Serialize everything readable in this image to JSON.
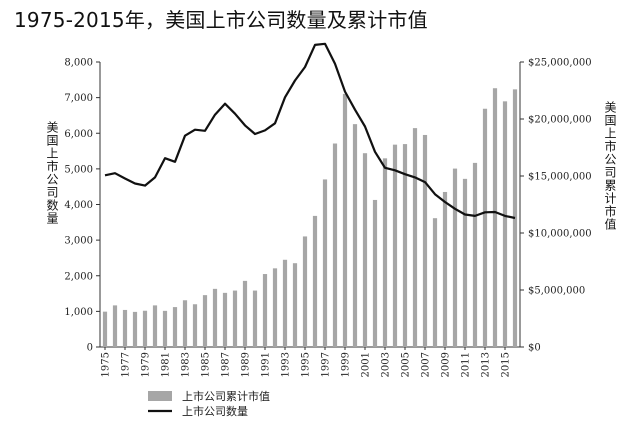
{
  "colors": {
    "bars": "#a6a6a6",
    "line": "#111111",
    "axis": "#333333"
  },
  "chart_data": {
    "type": "bar",
    "title": "1975-2015年，美国上市公司数量及累计市值",
    "ylabel": "美国上市公司数量",
    "y2label": "美国上市公司累计市值",
    "ylim": [
      0,
      8000
    ],
    "y2lim": [
      0,
      25000000
    ],
    "yticks": [
      "0",
      "1,000",
      "2,000",
      "3,000",
      "4,000",
      "5,000",
      "6,000",
      "7,000",
      "8,000"
    ],
    "y2ticks": [
      "$0",
      "$5,000,000",
      "$10,000,000",
      "$15,000,000",
      "$20,000,000",
      "$25,000,000"
    ],
    "xticks": [
      "1975",
      "1977",
      "1979",
      "1981",
      "1983",
      "1985",
      "1987",
      "1989",
      "1991",
      "1993",
      "1995",
      "1997",
      "1999",
      "2001",
      "2003",
      "2005",
      "2007",
      "2009",
      "2011",
      "2013",
      "2015"
    ],
    "categories": [
      "1975",
      "1976",
      "1977",
      "1978",
      "1979",
      "1980",
      "1981",
      "1982",
      "1983",
      "1984",
      "1985",
      "1986",
      "1987",
      "1988",
      "1989",
      "1990",
      "1991",
      "1992",
      "1993",
      "1994",
      "1995",
      "1996",
      "1997",
      "1998",
      "1999",
      "2000",
      "2001",
      "2002",
      "2003",
      "2004",
      "2005",
      "2006",
      "2007",
      "2008",
      "2009",
      "2010",
      "2011",
      "2012",
      "2013",
      "2014",
      "2015",
      "2016"
    ],
    "series": [
      {
        "name": "上市公司累计市值",
        "axis": "right",
        "kind": "bar",
        "values": [
          3100000,
          3650000,
          3250000,
          3080000,
          3180000,
          3650000,
          3170000,
          3500000,
          4100000,
          3750000,
          4550000,
          5100000,
          4750000,
          4950000,
          5800000,
          4950000,
          6400000,
          6900000,
          7650000,
          7350000,
          9700000,
          11500000,
          14700000,
          17850000,
          22200000,
          19550000,
          17000000,
          12900000,
          16550000,
          17750000,
          17800000,
          19200000,
          18600000,
          11300000,
          13600000,
          15650000,
          14750000,
          16150000,
          20900000,
          22700000,
          21550000,
          22600000
        ]
      },
      {
        "name": "上市公司数量",
        "axis": "left",
        "kind": "line",
        "values": [
          4820,
          4880,
          4730,
          4590,
          4530,
          4760,
          5300,
          5200,
          5930,
          6100,
          6070,
          6520,
          6830,
          6550,
          6220,
          5980,
          6080,
          6280,
          7010,
          7480,
          7860,
          8480,
          8510,
          7950,
          7170,
          6660,
          6190,
          5480,
          5030,
          4960,
          4850,
          4760,
          4630,
          4290,
          4070,
          3880,
          3720,
          3680,
          3780,
          3790,
          3680,
          3620
        ]
      }
    ],
    "legend": "bottom-left"
  }
}
